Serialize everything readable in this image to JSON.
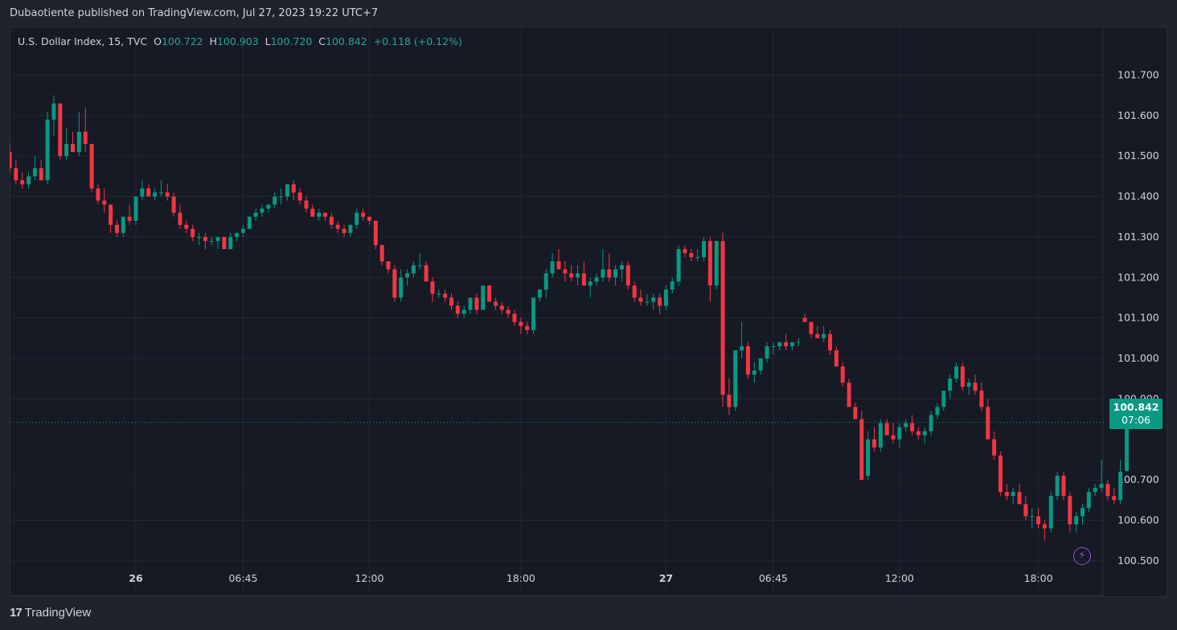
{
  "header": {
    "caption": "Dubaotiente published on TradingView.com, Jul 27, 2023 19:22 UTC+7"
  },
  "legend": {
    "symbol": "U.S. Dollar Index, 15, TVC",
    "o_label": "O",
    "o_value": "100.722",
    "h_label": "H",
    "h_value": "100.903",
    "l_label": "L",
    "l_value": "100.720",
    "c_label": "C",
    "c_value": "100.842",
    "change": "+0.118 (+0.12%)"
  },
  "price_tag": {
    "price": "100.842",
    "countdown": "07:06"
  },
  "footer": {
    "brand": "TradingView",
    "logo_icon": "tradingview-logo-icon"
  },
  "colors": {
    "up": "#089981",
    "down": "#f23645",
    "grid": "#232733",
    "text": "#d1d4dc",
    "axis_text": "#b2b5be",
    "accent": "#a447d6"
  },
  "chart_data": {
    "type": "candlestick",
    "title": "U.S. Dollar Index, 15, TVC",
    "timeframe": "15",
    "ylim": [
      100.45,
      101.82
    ],
    "y_ticks": [
      "101.700",
      "101.600",
      "101.500",
      "101.400",
      "101.300",
      "101.200",
      "101.100",
      "101.000",
      "100.900",
      "100.700",
      "100.600",
      "100.500"
    ],
    "x_ticks": [
      {
        "label": "26",
        "i": 20,
        "bold": true
      },
      {
        "label": "06:45",
        "i": 37,
        "bold": false
      },
      {
        "label": "12:00",
        "i": 57,
        "bold": false
      },
      {
        "label": "18:00",
        "i": 81,
        "bold": false
      },
      {
        "label": "27",
        "i": 104,
        "bold": true
      },
      {
        "label": "06:45",
        "i": 121,
        "bold": false
      },
      {
        "label": "12:00",
        "i": 141,
        "bold": false
      },
      {
        "label": "18:00",
        "i": 163,
        "bold": false
      }
    ],
    "last_price": 100.842,
    "grid": true,
    "candles": [
      [
        101.51,
        101.53,
        101.46,
        101.47
      ],
      [
        101.47,
        101.49,
        101.43,
        101.44
      ],
      [
        101.44,
        101.46,
        101.42,
        101.43
      ],
      [
        101.43,
        101.46,
        101.42,
        101.45
      ],
      [
        101.45,
        101.5,
        101.44,
        101.47
      ],
      [
        101.47,
        101.49,
        101.44,
        101.44
      ],
      [
        101.44,
        101.61,
        101.43,
        101.59
      ],
      [
        101.59,
        101.65,
        101.55,
        101.63
      ],
      [
        101.63,
        101.63,
        101.49,
        101.5
      ],
      [
        101.5,
        101.57,
        101.49,
        101.53
      ],
      [
        101.53,
        101.56,
        101.51,
        101.51
      ],
      [
        101.51,
        101.61,
        101.5,
        101.56
      ],
      [
        101.56,
        101.62,
        101.51,
        101.53
      ],
      [
        101.53,
        101.53,
        101.41,
        101.42
      ],
      [
        101.42,
        101.43,
        101.38,
        101.39
      ],
      [
        101.39,
        101.42,
        101.36,
        101.38
      ],
      [
        101.38,
        101.38,
        101.31,
        101.33
      ],
      [
        101.33,
        101.34,
        101.3,
        101.31
      ],
      [
        101.31,
        101.35,
        101.3,
        101.35
      ],
      [
        101.35,
        101.38,
        101.33,
        101.34
      ],
      [
        101.34,
        101.4,
        101.33,
        101.4
      ],
      [
        101.4,
        101.44,
        101.39,
        101.42
      ],
      [
        101.42,
        101.43,
        101.4,
        101.4
      ],
      [
        101.4,
        101.42,
        101.39,
        101.41
      ],
      [
        101.41,
        101.44,
        101.4,
        101.41
      ],
      [
        101.41,
        101.43,
        101.39,
        101.4
      ],
      [
        101.4,
        101.41,
        101.35,
        101.36
      ],
      [
        101.36,
        101.38,
        101.32,
        101.33
      ],
      [
        101.33,
        101.34,
        101.31,
        101.32
      ],
      [
        101.32,
        101.33,
        101.29,
        101.3
      ],
      [
        101.3,
        101.31,
        101.28,
        101.3
      ],
      [
        101.3,
        101.31,
        101.27,
        101.29
      ],
      [
        101.29,
        101.3,
        101.28,
        101.29
      ],
      [
        101.29,
        101.3,
        101.27,
        101.3
      ],
      [
        101.3,
        101.3,
        101.27,
        101.27
      ],
      [
        101.27,
        101.31,
        101.27,
        101.3
      ],
      [
        101.3,
        101.31,
        101.29,
        101.31
      ],
      [
        101.31,
        101.33,
        101.3,
        101.32
      ],
      [
        101.32,
        101.35,
        101.32,
        101.35
      ],
      [
        101.35,
        101.37,
        101.34,
        101.36
      ],
      [
        101.36,
        101.38,
        101.35,
        101.37
      ],
      [
        101.37,
        101.38,
        101.36,
        101.38
      ],
      [
        101.38,
        101.41,
        101.37,
        101.4
      ],
      [
        101.4,
        101.42,
        101.38,
        101.4
      ],
      [
        101.4,
        101.43,
        101.39,
        101.43
      ],
      [
        101.43,
        101.44,
        101.39,
        101.41
      ],
      [
        101.41,
        101.42,
        101.38,
        101.39
      ],
      [
        101.39,
        101.4,
        101.36,
        101.37
      ],
      [
        101.37,
        101.38,
        101.35,
        101.35
      ],
      [
        101.35,
        101.37,
        101.34,
        101.36
      ],
      [
        101.36,
        101.36,
        101.34,
        101.35
      ],
      [
        101.35,
        101.36,
        101.32,
        101.33
      ],
      [
        101.33,
        101.34,
        101.31,
        101.32
      ],
      [
        101.32,
        101.33,
        101.3,
        101.31
      ],
      [
        101.31,
        101.33,
        101.3,
        101.33
      ],
      [
        101.33,
        101.37,
        101.32,
        101.36
      ],
      [
        101.36,
        101.37,
        101.34,
        101.35
      ],
      [
        101.35,
        101.35,
        101.33,
        101.34
      ],
      [
        101.34,
        101.34,
        101.27,
        101.28
      ],
      [
        101.28,
        101.28,
        101.23,
        101.24
      ],
      [
        101.24,
        101.24,
        101.21,
        101.22
      ],
      [
        101.22,
        101.23,
        101.14,
        101.15
      ],
      [
        101.15,
        101.22,
        101.14,
        101.2
      ],
      [
        101.2,
        101.22,
        101.18,
        101.21
      ],
      [
        101.21,
        101.24,
        101.2,
        101.23
      ],
      [
        101.23,
        101.26,
        101.22,
        101.23
      ],
      [
        101.23,
        101.24,
        101.19,
        101.19
      ],
      [
        101.19,
        101.2,
        101.14,
        101.16
      ],
      [
        101.16,
        101.17,
        101.15,
        101.16
      ],
      [
        101.16,
        101.17,
        101.14,
        101.15
      ],
      [
        101.15,
        101.16,
        101.12,
        101.13
      ],
      [
        101.13,
        101.14,
        101.1,
        101.11
      ],
      [
        101.11,
        101.13,
        101.1,
        101.12
      ],
      [
        101.12,
        101.15,
        101.11,
        101.15
      ],
      [
        101.15,
        101.16,
        101.11,
        101.12
      ],
      [
        101.12,
        101.18,
        101.12,
        101.18
      ],
      [
        101.18,
        101.18,
        101.14,
        101.14
      ],
      [
        101.14,
        101.15,
        101.12,
        101.13
      ],
      [
        101.13,
        101.14,
        101.11,
        101.12
      ],
      [
        101.12,
        101.13,
        101.1,
        101.11
      ],
      [
        101.11,
        101.12,
        101.08,
        101.09
      ],
      [
        101.09,
        101.1,
        101.06,
        101.08
      ],
      [
        101.08,
        101.09,
        101.06,
        101.07
      ],
      [
        101.07,
        101.15,
        101.06,
        101.15
      ],
      [
        101.15,
        101.17,
        101.14,
        101.17
      ],
      [
        101.17,
        101.22,
        101.15,
        101.21
      ],
      [
        101.21,
        101.26,
        101.2,
        101.24
      ],
      [
        101.24,
        101.27,
        101.22,
        101.22
      ],
      [
        101.22,
        101.24,
        101.19,
        101.21
      ],
      [
        101.21,
        101.23,
        101.19,
        101.2
      ],
      [
        101.2,
        101.23,
        101.18,
        101.21
      ],
      [
        101.21,
        101.24,
        101.18,
        101.18
      ],
      [
        101.18,
        101.2,
        101.15,
        101.19
      ],
      [
        101.19,
        101.21,
        101.18,
        101.2
      ],
      [
        101.2,
        101.27,
        101.19,
        101.22
      ],
      [
        101.22,
        101.26,
        101.19,
        101.2
      ],
      [
        101.2,
        101.23,
        101.18,
        101.22
      ],
      [
        101.22,
        101.24,
        101.19,
        101.23
      ],
      [
        101.23,
        101.24,
        101.17,
        101.18
      ],
      [
        101.18,
        101.19,
        101.14,
        101.15
      ],
      [
        101.15,
        101.17,
        101.13,
        101.14
      ],
      [
        101.14,
        101.16,
        101.13,
        101.14
      ],
      [
        101.14,
        101.16,
        101.12,
        101.15
      ],
      [
        101.15,
        101.16,
        101.11,
        101.13
      ],
      [
        101.13,
        101.18,
        101.12,
        101.17
      ],
      [
        101.17,
        101.2,
        101.16,
        101.19
      ],
      [
        101.19,
        101.28,
        101.18,
        101.27
      ],
      [
        101.27,
        101.28,
        101.25,
        101.26
      ],
      [
        101.26,
        101.27,
        101.24,
        101.25
      ],
      [
        101.25,
        101.27,
        101.24,
        101.25
      ],
      [
        101.25,
        101.3,
        101.24,
        101.29
      ],
      [
        101.29,
        101.3,
        101.14,
        101.18
      ],
      [
        101.18,
        101.29,
        101.17,
        101.29
      ],
      [
        101.29,
        101.31,
        100.88,
        100.91
      ],
      [
        100.91,
        100.95,
        100.86,
        100.88
      ],
      [
        100.88,
        101.01,
        100.87,
        101.02
      ],
      [
        101.02,
        101.09,
        101.0,
        101.03
      ],
      [
        101.03,
        101.04,
        100.95,
        100.96
      ],
      [
        100.96,
        100.99,
        100.94,
        100.97
      ],
      [
        100.97,
        101.0,
        100.96,
        101.0
      ],
      [
        101.0,
        101.04,
        100.99,
        101.03
      ],
      [
        101.03,
        101.04,
        101.01,
        101.03
      ],
      [
        101.03,
        101.04,
        101.02,
        101.04
      ],
      [
        101.04,
        101.06,
        101.02,
        101.03
      ],
      [
        101.03,
        101.04,
        101.02,
        101.04
      ],
      [
        101.04,
        101.05,
        101.03,
        101.04
      ],
      [
        101.1,
        101.11,
        101.09,
        101.09
      ],
      [
        101.09,
        101.09,
        101.05,
        101.06
      ],
      [
        101.06,
        101.08,
        101.05,
        101.05
      ],
      [
        101.05,
        101.08,
        101.04,
        101.06
      ],
      [
        101.06,
        101.07,
        101.01,
        101.02
      ],
      [
        101.02,
        101.03,
        100.98,
        100.98
      ],
      [
        100.98,
        100.99,
        100.93,
        100.94
      ],
      [
        100.94,
        100.95,
        100.88,
        100.88
      ],
      [
        100.88,
        100.89,
        100.85,
        100.85
      ],
      [
        100.85,
        100.87,
        100.71,
        100.7
      ],
      [
        100.71,
        100.82,
        100.7,
        100.8
      ],
      [
        100.8,
        100.83,
        100.77,
        100.78
      ],
      [
        100.78,
        100.85,
        100.77,
        100.84
      ],
      [
        100.84,
        100.85,
        100.81,
        100.81
      ],
      [
        100.81,
        100.84,
        100.79,
        100.8
      ],
      [
        100.8,
        100.84,
        100.78,
        100.83
      ],
      [
        100.83,
        100.85,
        100.82,
        100.84
      ],
      [
        100.84,
        100.86,
        100.81,
        100.82
      ],
      [
        100.82,
        100.83,
        100.8,
        100.81
      ],
      [
        100.81,
        100.83,
        100.79,
        100.82
      ],
      [
        100.82,
        100.87,
        100.81,
        100.86
      ],
      [
        100.86,
        100.89,
        100.85,
        100.88
      ],
      [
        100.88,
        100.92,
        100.87,
        100.92
      ],
      [
        100.92,
        100.96,
        100.9,
        100.95
      ],
      [
        100.95,
        100.99,
        100.94,
        100.98
      ],
      [
        100.98,
        100.99,
        100.92,
        100.93
      ],
      [
        100.93,
        100.95,
        100.91,
        100.94
      ],
      [
        100.94,
        100.96,
        100.91,
        100.92
      ],
      [
        100.92,
        100.94,
        100.87,
        100.88
      ],
      [
        100.88,
        100.9,
        100.8,
        100.8
      ],
      [
        100.8,
        100.82,
        100.75,
        100.76
      ],
      [
        100.76,
        100.77,
        100.66,
        100.67
      ],
      [
        100.67,
        100.69,
        100.65,
        100.66
      ],
      [
        100.66,
        100.68,
        100.64,
        100.67
      ],
      [
        100.67,
        100.69,
        100.64,
        100.64
      ],
      [
        100.64,
        100.66,
        100.6,
        100.61
      ],
      [
        100.61,
        100.63,
        100.58,
        100.61
      ],
      [
        100.61,
        100.63,
        100.58,
        100.59
      ],
      [
        100.59,
        100.6,
        100.55,
        100.58
      ],
      [
        100.58,
        100.67,
        100.57,
        100.66
      ],
      [
        100.66,
        100.72,
        100.65,
        100.71
      ],
      [
        100.71,
        100.72,
        100.65,
        100.66
      ],
      [
        100.66,
        100.67,
        100.57,
        100.59
      ],
      [
        100.59,
        100.62,
        100.57,
        100.61
      ],
      [
        100.61,
        100.64,
        100.59,
        100.63
      ],
      [
        100.63,
        100.68,
        100.62,
        100.67
      ],
      [
        100.67,
        100.69,
        100.66,
        100.68
      ],
      [
        100.68,
        100.75,
        100.67,
        100.69
      ],
      [
        100.69,
        100.7,
        100.65,
        100.66
      ],
      [
        100.66,
        100.68,
        100.64,
        100.65
      ],
      [
        100.65,
        100.75,
        100.64,
        100.72
      ],
      [
        100.722,
        100.903,
        100.72,
        100.842
      ]
    ]
  }
}
